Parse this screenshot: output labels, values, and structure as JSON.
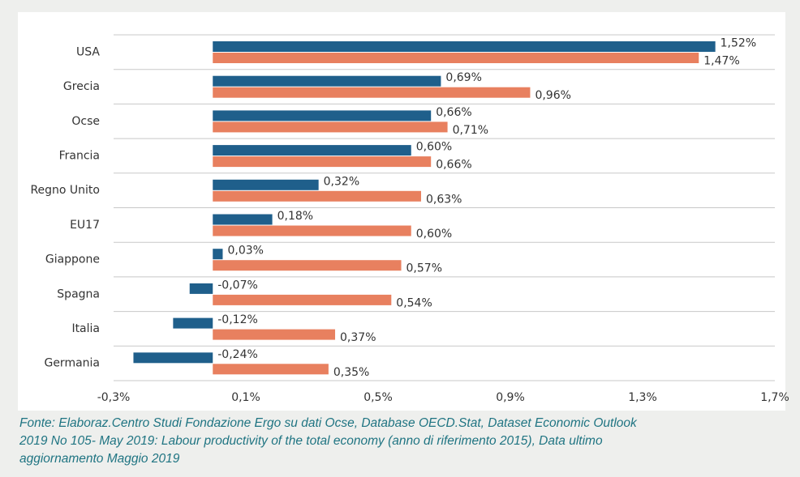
{
  "chart_data": {
    "type": "hbar",
    "categories": [
      "USA",
      "Grecia",
      "Ocse",
      "Francia",
      "Regno Unito",
      "EU17",
      "Giappone",
      "Spagna",
      "Italia",
      "Germania"
    ],
    "series": [
      {
        "color": "#1f5f8b",
        "values": [
          1.52,
          0.69,
          0.66,
          0.6,
          0.32,
          0.18,
          0.03,
          -0.07,
          -0.12,
          -0.24
        ],
        "value_labels": [
          "1,52%",
          "0,69%",
          "0,66%",
          "0,60%",
          "0,32%",
          "0,18%",
          "0,03%",
          "-0,07%",
          "-0,12%",
          "-0,24%"
        ]
      },
      {
        "color": "#e8805f",
        "values": [
          1.47,
          0.96,
          0.71,
          0.66,
          0.63,
          0.6,
          0.57,
          0.54,
          0.37,
          0.35
        ],
        "value_labels": [
          "1,47%",
          "0,96%",
          "0,71%",
          "0,66%",
          "0,63%",
          "0,60%",
          "0,57%",
          "0,54%",
          "0,37%",
          "0,35%"
        ]
      }
    ],
    "xlim": [
      -0.3,
      1.7
    ],
    "xticks": [
      {
        "value": -0.3,
        "label": "-0,3%"
      },
      {
        "value": 0.1,
        "label": "0,1%"
      },
      {
        "value": 0.5,
        "label": "0,5%"
      },
      {
        "value": 0.9,
        "label": "0,9%"
      },
      {
        "value": 1.3,
        "label": "1,3%"
      },
      {
        "value": 1.7,
        "label": "1,7%"
      }
    ],
    "source": [
      "Fonte: Elaboraz.Centro Studi Fondazione Ergo su dati Ocse, Database OECD.Stat, Dataset Economic Outlook",
      "2019 No 105- May 2019: Labour productivity of the total economy (anno di riferimento 2015), Data ultimo",
      "aggiornamento Maggio 2019"
    ]
  }
}
